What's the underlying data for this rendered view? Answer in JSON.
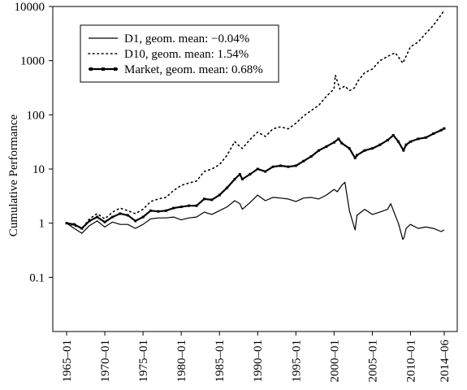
{
  "chart_data": {
    "type": "line",
    "title": "",
    "xlabel": "",
    "ylabel": "Cumulative Performance",
    "y_scale": "log",
    "ylim": [
      0.01,
      10000
    ],
    "xlim": [
      "1965-01",
      "2014-06"
    ],
    "x_tick_labels": [
      "1965–01",
      "1970–01",
      "1975–01",
      "1980–01",
      "1985–01",
      "1990–01",
      "1995–01",
      "2000–01",
      "2005–01",
      "2010–01",
      "2014–06"
    ],
    "y_tick_labels": [
      "0.1",
      "1",
      "10",
      "100",
      "1000",
      "10000"
    ],
    "y_tick_values": [
      0.1,
      1,
      10,
      100,
      1000,
      10000
    ],
    "grid": false,
    "legend": {
      "position": "top-left",
      "entries": [
        "D1, geom. mean: −0.04%",
        "D10, geom. mean: 1.54%",
        "Market, geom. mean: 0.68%"
      ]
    },
    "series": [
      {
        "name": "D1, geom. mean: −0.04%",
        "style": "solid",
        "color": "#000000",
        "x": [
          "1965-01",
          "1966-01",
          "1967-01",
          "1968-01",
          "1969-01",
          "1970-01",
          "1971-01",
          "1972-01",
          "1973-01",
          "1974-01",
          "1975-01",
          "1976-01",
          "1977-01",
          "1978-01",
          "1979-01",
          "1980-01",
          "1981-01",
          "1982-01",
          "1983-01",
          "1984-01",
          "1985-01",
          "1986-01",
          "1987-01",
          "1987-09",
          "1988-01",
          "1989-01",
          "1990-01",
          "1991-01",
          "1992-01",
          "1993-01",
          "1994-01",
          "1995-01",
          "1996-01",
          "1997-01",
          "1998-01",
          "1999-01",
          "2000-01",
          "2000-06",
          "2001-01",
          "2001-06",
          "2002-01",
          "2002-10",
          "2003-01",
          "2004-01",
          "2005-01",
          "2006-01",
          "2007-01",
          "2007-06",
          "2008-01",
          "2008-06",
          "2009-01",
          "2009-03",
          "2009-06",
          "2010-01",
          "2011-01",
          "2012-01",
          "2013-01",
          "2014-01",
          "2014-06"
        ],
        "values": [
          1.0,
          0.8,
          0.65,
          0.9,
          1.1,
          0.85,
          1.05,
          0.95,
          0.95,
          0.8,
          0.95,
          1.2,
          1.25,
          1.25,
          1.3,
          1.15,
          1.25,
          1.3,
          1.6,
          1.45,
          1.7,
          2.0,
          2.6,
          2.3,
          1.8,
          2.4,
          3.3,
          2.6,
          3.0,
          2.9,
          2.8,
          2.5,
          2.9,
          3.0,
          2.8,
          3.3,
          4.2,
          3.8,
          5.0,
          5.7,
          1.7,
          0.75,
          1.4,
          1.8,
          1.45,
          1.6,
          1.8,
          2.3,
          1.4,
          1.0,
          0.5,
          0.55,
          0.8,
          0.95,
          0.8,
          0.85,
          0.8,
          0.7,
          0.75
        ]
      },
      {
        "name": "D10, geom. mean: 1.54%",
        "style": "dotted",
        "color": "#000000",
        "x": [
          "1965-01",
          "1966-01",
          "1967-01",
          "1968-01",
          "1969-01",
          "1970-01",
          "1971-01",
          "1972-01",
          "1973-01",
          "1974-01",
          "1975-01",
          "1976-01",
          "1977-01",
          "1978-01",
          "1979-01",
          "1980-01",
          "1981-01",
          "1982-01",
          "1983-01",
          "1984-01",
          "1985-01",
          "1986-01",
          "1987-01",
          "1987-09",
          "1988-01",
          "1989-01",
          "1990-01",
          "1991-01",
          "1992-01",
          "1993-01",
          "1994-01",
          "1995-01",
          "1996-01",
          "1997-01",
          "1998-01",
          "1999-01",
          "2000-01",
          "2000-03",
          "2000-10",
          "2001-06",
          "2002-01",
          "2002-10",
          "2003-01",
          "2004-01",
          "2005-01",
          "2006-01",
          "2007-01",
          "2008-01",
          "2009-01",
          "2010-01",
          "2011-01",
          "2012-01",
          "2013-01",
          "2014-01",
          "2014-06"
        ],
        "values": [
          1.0,
          0.9,
          0.8,
          1.2,
          1.5,
          1.2,
          1.6,
          1.9,
          1.7,
          1.5,
          1.8,
          2.5,
          2.8,
          3.0,
          4.0,
          5.0,
          5.5,
          6.0,
          9.0,
          10.0,
          12.0,
          18.0,
          32.0,
          26.0,
          24.0,
          35.0,
          48.0,
          40.0,
          55.0,
          60.0,
          55.0,
          70.0,
          95.0,
          120.0,
          150.0,
          220.0,
          300.0,
          540.0,
          300.0,
          340.0,
          280.0,
          320.0,
          400.0,
          600.0,
          700.0,
          1000.0,
          1200.0,
          1400.0,
          900.0,
          1800.0,
          2200.0,
          3200.0,
          4500.0,
          7000.0,
          8500.0
        ]
      },
      {
        "name": "Market, geom. mean: 0.68%",
        "style": "solid-marker",
        "color": "#000000",
        "x": [
          "1965-01",
          "1966-01",
          "1967-01",
          "1968-01",
          "1969-01",
          "1970-01",
          "1971-01",
          "1972-01",
          "1973-01",
          "1974-01",
          "1975-01",
          "1976-01",
          "1977-01",
          "1978-01",
          "1979-01",
          "1980-01",
          "1981-01",
          "1982-01",
          "1983-01",
          "1984-01",
          "1985-01",
          "1986-01",
          "1987-01",
          "1987-09",
          "1988-01",
          "1989-01",
          "1990-01",
          "1991-01",
          "1992-01",
          "1993-01",
          "1994-01",
          "1995-01",
          "1996-01",
          "1997-01",
          "1998-01",
          "1999-01",
          "2000-01",
          "2000-08",
          "2001-01",
          "2002-01",
          "2002-10",
          "2003-01",
          "2004-01",
          "2005-01",
          "2006-01",
          "2007-01",
          "2007-10",
          "2008-06",
          "2009-02",
          "2009-06",
          "2010-01",
          "2011-01",
          "2012-01",
          "2013-01",
          "2014-01",
          "2014-06"
        ],
        "values": [
          1.0,
          0.95,
          0.8,
          1.1,
          1.3,
          1.05,
          1.3,
          1.5,
          1.4,
          1.1,
          1.3,
          1.7,
          1.65,
          1.7,
          1.9,
          2.0,
          2.1,
          2.1,
          2.8,
          2.7,
          3.3,
          4.5,
          6.5,
          8.0,
          6.5,
          8.0,
          10.0,
          9.0,
          11.0,
          11.5,
          11.0,
          11.5,
          14.0,
          17.0,
          22.0,
          26.0,
          31.0,
          36.0,
          30.0,
          24.0,
          16.0,
          18.0,
          22.0,
          24.0,
          28.0,
          34.0,
          42.0,
          32.0,
          22.0,
          28.0,
          32.0,
          36.0,
          38.0,
          45.0,
          52.0,
          56.0
        ]
      }
    ]
  }
}
